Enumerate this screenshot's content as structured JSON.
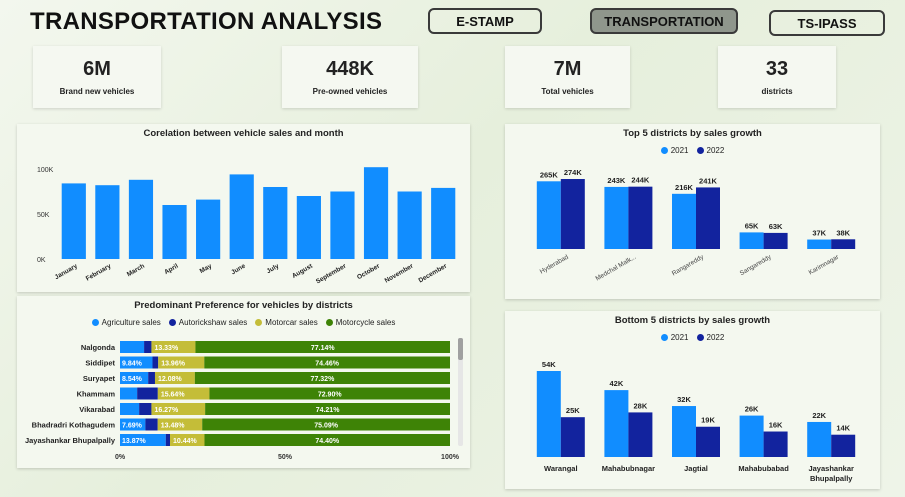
{
  "header": {
    "title": "TRANSPORTATION ANALYSIS",
    "nav": [
      "E-STAMP",
      "TRANSPORTATION",
      "TS-IPASS"
    ],
    "active_nav": "TRANSPORTATION"
  },
  "kpis": [
    {
      "value": "6M",
      "label": "Brand new vehicles"
    },
    {
      "value": "448K",
      "label": "Pre-owned vehicles"
    },
    {
      "value": "7M",
      "label": "Total vehicles"
    },
    {
      "value": "33",
      "label": "districts"
    }
  ],
  "colors": {
    "c2021": "#118DFF",
    "c2022": "#12239E",
    "agri": "#118DFF",
    "auto": "#12239E",
    "motorcar": "#C4BD38",
    "motorcycle": "#3E8306"
  },
  "chart_data": [
    {
      "type": "bar",
      "title": "Corelation between vehicle sales and month",
      "categories": [
        "January",
        "February",
        "March",
        "April",
        "May",
        "June",
        "July",
        "August",
        "September",
        "October",
        "November",
        "December"
      ],
      "values": [
        84,
        82,
        88,
        60,
        66,
        94,
        80,
        70,
        75,
        102,
        75,
        79
      ],
      "yticks": [
        "0K",
        "50K",
        "100K"
      ],
      "ylim": [
        0,
        110
      ]
    },
    {
      "type": "bar",
      "title": "Predominant Preference for vehicles by districts",
      "orientation": "horizontal-stacked-100",
      "legend": [
        "Agriculture sales",
        "Autorickshaw sales",
        "Motorcar sales",
        "Motorcycle sales"
      ],
      "categories": [
        "Nalgonda",
        "Siddipet",
        "Suryapet",
        "Khammam",
        "Vikarabad",
        "Bhadradri Kothagudem",
        "Jayashankar Bhupalpally"
      ],
      "series": [
        {
          "name": "Agriculture sales",
          "values": [
            7.3,
            9.84,
            8.54,
            5.2,
            5.8,
            7.69,
            13.87
          ],
          "labels": [
            "",
            "9.84%",
            "8.54%",
            "",
            "",
            "7.69%",
            "13.87%"
          ]
        },
        {
          "name": "Autorickshaw sales",
          "values": [
            2.23,
            1.74,
            2.06,
            6.26,
            3.73,
            3.74,
            1.29
          ],
          "labels": [
            "",
            "",
            "",
            "",
            "",
            "",
            ""
          ]
        },
        {
          "name": "Motorcar sales",
          "values": [
            13.33,
            13.96,
            12.08,
            15.64,
            16.27,
            13.48,
            10.44
          ],
          "labels": [
            "13.33%",
            "13.96%",
            "12.08%",
            "15.64%",
            "16.27%",
            "13.48%",
            "10.44%"
          ]
        },
        {
          "name": "Motorcycle sales",
          "values": [
            77.14,
            74.46,
            77.32,
            72.9,
            74.21,
            75.09,
            74.4
          ],
          "labels": [
            "77.14%",
            "74.46%",
            "77.32%",
            "72.90%",
            "74.21%",
            "75.09%",
            "74.40%"
          ]
        }
      ],
      "xticks": [
        "0%",
        "50%",
        "100%"
      ]
    },
    {
      "type": "bar",
      "title": "Top 5 districts by sales growth",
      "legend": [
        "2021",
        "2022"
      ],
      "categories": [
        "Hyderabad",
        "Medchal Malk...",
        "Rangareddy",
        "Sangareddy",
        "Karimnagar"
      ],
      "series": [
        {
          "name": "2021",
          "values": [
            265,
            243,
            216,
            65,
            37
          ],
          "labels": [
            "265K",
            "243K",
            "216K",
            "65K",
            "37K"
          ]
        },
        {
          "name": "2022",
          "values": [
            274,
            244,
            241,
            63,
            38
          ],
          "labels": [
            "274K",
            "244K",
            "241K",
            "63K",
            "38K"
          ]
        }
      ]
    },
    {
      "type": "bar",
      "title": "Bottom 5 districts by sales growth",
      "legend": [
        "2021",
        "2022"
      ],
      "categories": [
        "Warangal",
        "Mahabubnagar",
        "Jagtial",
        "Mahabubabad",
        "Jayashankar Bhupalpally"
      ],
      "series": [
        {
          "name": "2021",
          "values": [
            54,
            42,
            32,
            26,
            22
          ],
          "labels": [
            "54K",
            "42K",
            "32K",
            "26K",
            "22K"
          ]
        },
        {
          "name": "2022",
          "values": [
            25,
            28,
            19,
            16,
            14
          ],
          "labels": [
            "25K",
            "28K",
            "19K",
            "16K",
            "14K"
          ]
        }
      ]
    }
  ]
}
